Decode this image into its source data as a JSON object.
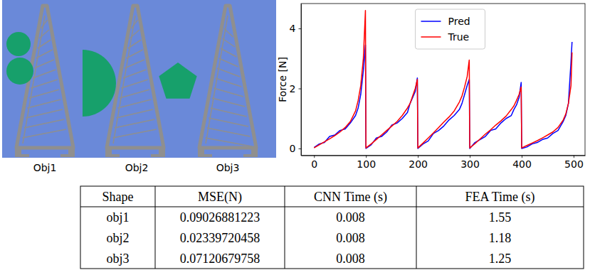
{
  "objects": [
    "Obj1",
    "Obj2",
    "Obj3"
  ],
  "chart_data": {
    "type": "line",
    "y_label": "Force [N]",
    "x": [
      0,
      10,
      20,
      30,
      40,
      50,
      60,
      70,
      80,
      85,
      90,
      95,
      99,
      100,
      110,
      120,
      130,
      140,
      150,
      160,
      170,
      180,
      185,
      190,
      195,
      199,
      200,
      210,
      220,
      230,
      240,
      250,
      260,
      270,
      280,
      285,
      290,
      295,
      299,
      300,
      310,
      320,
      330,
      340,
      350,
      360,
      370,
      380,
      385,
      390,
      395,
      399,
      400,
      410,
      420,
      430,
      440,
      450,
      460,
      470,
      480,
      485,
      490,
      495,
      497
    ],
    "series": [
      {
        "name": "Pred",
        "color": "#0000ff",
        "values": [
          0.03,
          0.15,
          0.2,
          0.4,
          0.45,
          0.6,
          0.65,
          0.85,
          1.1,
          1.35,
          1.8,
          2.6,
          3.45,
          0.0,
          0.12,
          0.35,
          0.4,
          0.55,
          0.78,
          0.85,
          1.0,
          1.2,
          1.5,
          1.7,
          1.9,
          2.35,
          0.0,
          0.15,
          0.25,
          0.5,
          0.6,
          0.75,
          0.95,
          1.1,
          1.3,
          1.5,
          1.8,
          2.1,
          2.3,
          0.0,
          0.2,
          0.3,
          0.4,
          0.6,
          0.65,
          0.85,
          1.0,
          1.1,
          1.3,
          1.45,
          1.7,
          2.2,
          0.0,
          0.05,
          0.15,
          0.2,
          0.3,
          0.35,
          0.5,
          0.6,
          0.9,
          1.1,
          1.5,
          2.9,
          3.55
        ]
      },
      {
        "name": "True",
        "color": "#ff0000",
        "values": [
          0.02,
          0.12,
          0.22,
          0.32,
          0.43,
          0.55,
          0.7,
          0.9,
          1.25,
          1.6,
          2.1,
          3.0,
          4.6,
          0.02,
          0.15,
          0.3,
          0.45,
          0.6,
          0.75,
          0.9,
          1.1,
          1.35,
          1.5,
          1.75,
          2.0,
          2.3,
          0.02,
          0.18,
          0.35,
          0.52,
          0.7,
          0.88,
          1.05,
          1.25,
          1.55,
          1.75,
          2.05,
          2.4,
          2.95,
          0.02,
          0.16,
          0.32,
          0.48,
          0.62,
          0.78,
          0.92,
          1.08,
          1.3,
          1.42,
          1.6,
          1.8,
          2.05,
          0.02,
          0.1,
          0.18,
          0.26,
          0.35,
          0.45,
          0.55,
          0.7,
          0.95,
          1.15,
          1.5,
          2.1,
          3.2
        ]
      }
    ],
    "xlim": [
      -25,
      522
    ],
    "xticks": [
      0,
      100,
      200,
      300,
      400,
      500
    ],
    "ylim": [
      -0.23,
      4.83
    ],
    "yticks": [
      0,
      2,
      4
    ],
    "grid": false,
    "legend": "upper center"
  },
  "table": {
    "header": [
      "Shape",
      "MSE(N)",
      "CNN Time (s)",
      "FEA Time (s)"
    ],
    "rows": [
      [
        "obj1",
        0.09026881223,
        0.008,
        1.55
      ],
      [
        "obj2",
        0.02339720458,
        0.008,
        1.18
      ],
      [
        "obj3",
        0.07120679758,
        0.008,
        1.25
      ]
    ]
  }
}
